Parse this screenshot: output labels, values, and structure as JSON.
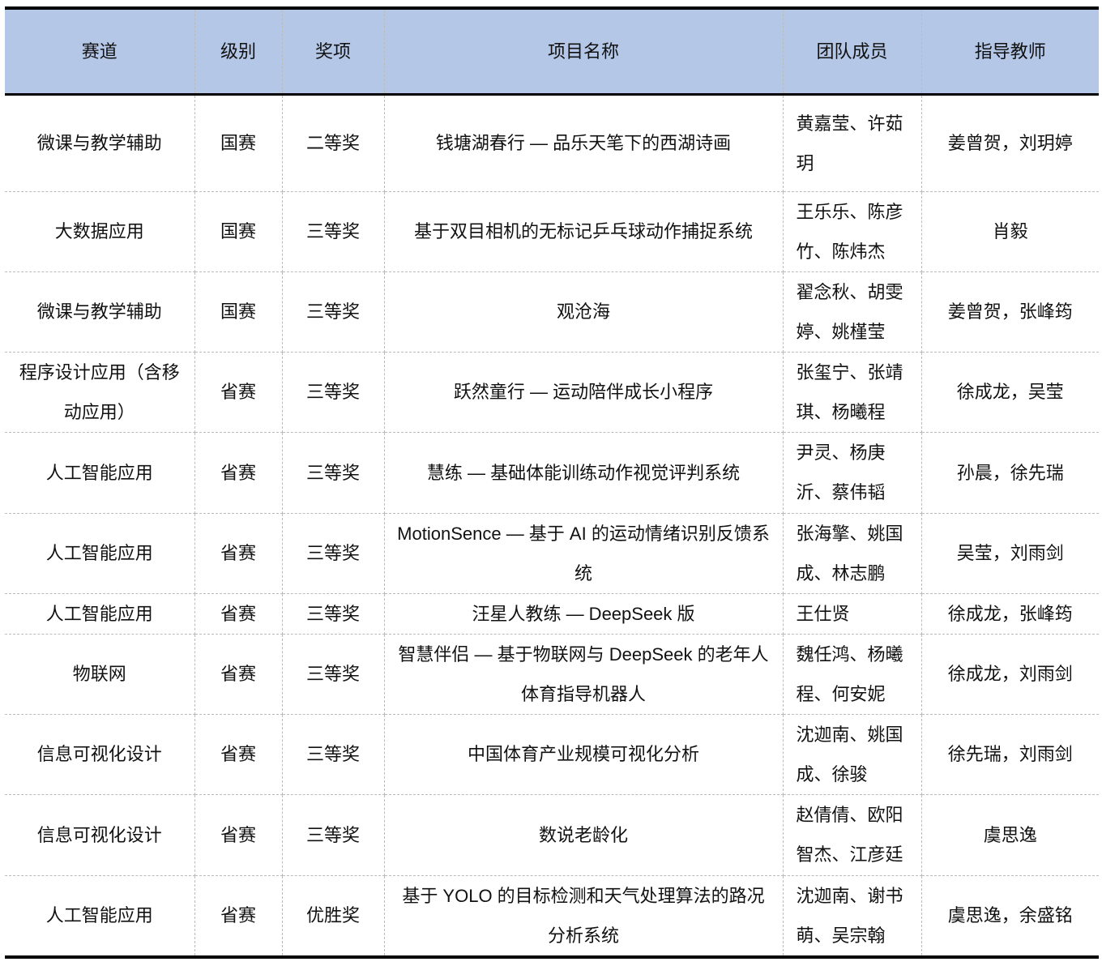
{
  "header": [
    "赛道",
    "级别",
    "奖项",
    "项目名称",
    "团队成员",
    "指导教师"
  ],
  "rows": [
    {
      "track": "微课与教学辅助",
      "level": "国赛",
      "award": "二等奖",
      "project": "钱塘湖春行 — 品乐天笔下的西湖诗画",
      "team": "黄嘉莹、许茹玥",
      "advisor": "姜曾贺，刘玥婷"
    },
    {
      "track": "大数据应用",
      "level": "国赛",
      "award": "三等奖",
      "project": "基于双目相机的无标记乒乓球动作捕捉系统",
      "team": "王乐乐、陈彦竹、陈炜杰",
      "advisor": "肖毅"
    },
    {
      "track": "微课与教学辅助",
      "level": "国赛",
      "award": "三等奖",
      "project": "观沧海",
      "team": "翟念秋、胡雯婷、姚槿莹",
      "advisor": "姜曾贺，张峰筠"
    },
    {
      "track": "程序设计应用（含移动应用）",
      "level": "省赛",
      "award": "三等奖",
      "project": "跃然童行 — 运动陪伴成长小程序",
      "team": "张玺宁、张靖琪、杨曦程",
      "advisor": "徐成龙，吴莹"
    },
    {
      "track": "人工智能应用",
      "level": "省赛",
      "award": "三等奖",
      "project": "慧练 — 基础体能训练动作视觉评判系统",
      "team": "尹灵、杨庚沂、蔡伟韬",
      "advisor": "孙晨，徐先瑞"
    },
    {
      "track": "人工智能应用",
      "level": "省赛",
      "award": "三等奖",
      "project": "MotionSence — 基于 AI 的运动情绪识别反馈系统",
      "team": "张海擎、姚国成、林志鹏",
      "advisor": "吴莹，刘雨剑"
    },
    {
      "track": "人工智能应用",
      "level": "省赛",
      "award": "三等奖",
      "project": "汪星人教练 — DeepSeek 版",
      "team": "王仕贤",
      "advisor": "徐成龙，张峰筠"
    },
    {
      "track": "物联网",
      "level": "省赛",
      "award": "三等奖",
      "project": "智慧伴侣 — 基于物联网与 DeepSeek 的老年人体育指导机器人",
      "team": "魏任鸿、杨曦程、何安妮",
      "advisor": "徐成龙，刘雨剑"
    },
    {
      "track": "信息可视化设计",
      "level": "省赛",
      "award": "三等奖",
      "project": "中国体育产业规模可视化分析",
      "team": "沈迦南、姚国成、徐骏",
      "advisor": "徐先瑞，刘雨剑"
    },
    {
      "track": "信息可视化设计",
      "level": "省赛",
      "award": "三等奖",
      "project": "数说老龄化",
      "team": "赵倩倩、欧阳智杰、江彦廷",
      "advisor": "虞思逸"
    },
    {
      "track": "人工智能应用",
      "level": "省赛",
      "award": "优胜奖",
      "project": "基于 YOLO 的目标检测和天气处理算法的路况分析系统",
      "team": "沈迦南、谢书萌、吴宗翰",
      "advisor": "虞思逸，余盛铭"
    }
  ]
}
